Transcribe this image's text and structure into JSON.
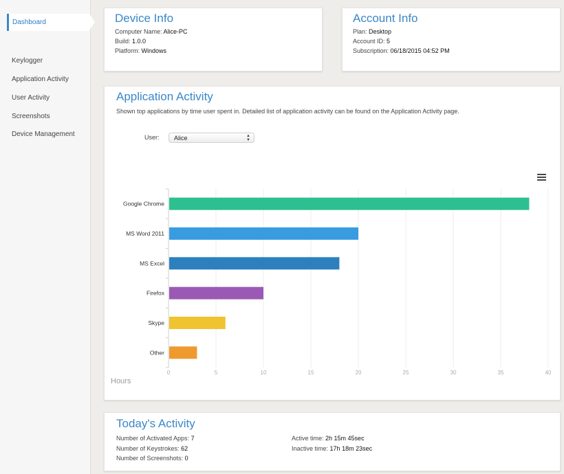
{
  "sidebar": {
    "active_item": "Dashboard",
    "items": [
      "Keylogger",
      "Application Activity",
      "User Activity",
      "Screenshots",
      "Device Management"
    ]
  },
  "device_info": {
    "title": "Device Info",
    "computer_name_label": "Computer Name:",
    "computer_name": "Alice-PC",
    "build_label": "Build:",
    "build": "1.0.0",
    "platform_label": "Platform:",
    "platform": "Windows"
  },
  "account_info": {
    "title": "Account Info",
    "plan_label": "Plan:",
    "plan": "Desktop",
    "account_id_label": "Account ID:",
    "account_id": "5",
    "subscription_label": "Subscription:",
    "subscription": "06/18/2015 04:52 PM"
  },
  "app_activity": {
    "title": "Application Activity",
    "description": "Shown top applications by time user spent in. Detailed list of application activity can be found on the Application Activity page.",
    "user_label": "User:",
    "user_selected": "Alice",
    "menu_icon": "hamburger-menu-icon"
  },
  "chart_data": {
    "type": "bar",
    "orientation": "horizontal",
    "categories": [
      "Google Chrome",
      "MS Word 2011",
      "MS Excel",
      "Firefox",
      "Skype",
      "Other"
    ],
    "values": [
      38,
      20,
      18,
      10,
      6,
      3
    ],
    "colors": [
      "#2ebf91",
      "#3a9ce0",
      "#2e80bd",
      "#9b59b6",
      "#f0c330",
      "#ef9a2e"
    ],
    "xlabel": "Hours",
    "xlim": [
      0,
      40
    ],
    "xticks": [
      0,
      5,
      10,
      15,
      20,
      25,
      30,
      35,
      40
    ],
    "grid": true
  },
  "todays_activity": {
    "title": "Today's Activity",
    "activated_apps_label": "Number of Activated Apps:",
    "activated_apps": "7",
    "keystrokes_label": "Number of Keystrokes:",
    "keystrokes": "62",
    "screenshots_label": "Number of Screenshots:",
    "screenshots": "0",
    "active_time_label": "Active time:",
    "active_time": "2h 15m 45sec",
    "inactive_time_label": "Inactive time:",
    "inactive_time": "17h 18m 23sec"
  },
  "colors": {
    "accent": "#3a87c8",
    "background": "#eeedea"
  }
}
